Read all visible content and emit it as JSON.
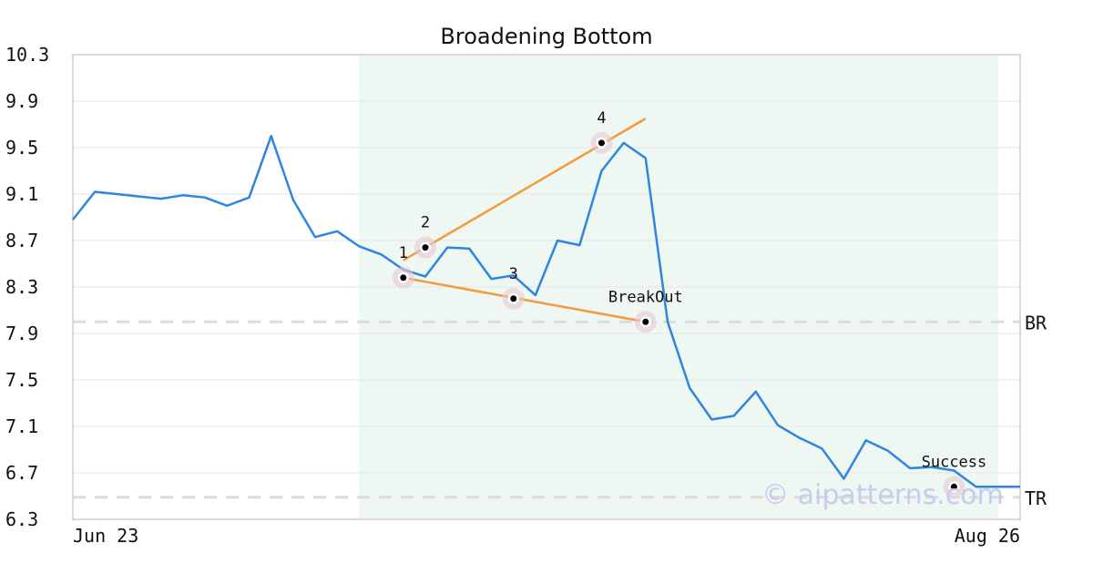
{
  "chart_data": {
    "type": "line",
    "title": "Broadening Bottom",
    "xlabel": "",
    "ylabel": "",
    "ylim": [
      6.3,
      10.3
    ],
    "y_ticks": [
      "10.3",
      "9.9",
      "9.5",
      "9.1",
      "8.7",
      "8.3",
      "7.9",
      "7.5",
      "7.1",
      "6.7",
      "6.3"
    ],
    "x_tick_labels": [
      "Jun 23",
      "Aug 26"
    ],
    "grid": true,
    "highlight_range": [
      13,
      42
    ],
    "series": [
      {
        "color": "#2e86de",
        "values": [
          8.88,
          9.12,
          9.1,
          9.08,
          9.06,
          9.09,
          9.07,
          9.0,
          9.07,
          9.6,
          9.05,
          8.73,
          8.78,
          8.65,
          8.58,
          8.45,
          8.39,
          8.64,
          8.63,
          8.37,
          8.4,
          8.23,
          8.7,
          8.66,
          9.3,
          9.54,
          9.41,
          8.0,
          7.43,
          7.16,
          7.19,
          7.4,
          7.11,
          7.0,
          6.91,
          6.65,
          6.98,
          6.89,
          6.74,
          6.75,
          6.72,
          6.58,
          6.58,
          6.58
        ]
      }
    ],
    "reference_lines": [
      {
        "label": "BR",
        "value": 8.0,
        "color": "#dcdcdc"
      },
      {
        "label": "TR",
        "value": 6.49,
        "color": "#dcdcdc"
      }
    ],
    "trendlines": [
      {
        "color": "#f59a3c",
        "from": [
          15.0,
          8.53
        ],
        "to": [
          26.0,
          9.75
        ]
      },
      {
        "color": "#f59a3c",
        "from": [
          15.0,
          8.38
        ],
        "to": [
          26.0,
          8.0
        ]
      }
    ],
    "annotations": [
      {
        "label": "1",
        "x": 15.0,
        "y": 8.38
      },
      {
        "label": "2",
        "x": 16.0,
        "y": 8.64
      },
      {
        "label": "3",
        "x": 20.0,
        "y": 8.2
      },
      {
        "label": "4",
        "x": 24.0,
        "y": 9.54
      },
      {
        "label": "BreakOut",
        "x": 26.0,
        "y": 8.0
      },
      {
        "label": "Success",
        "x": 40.0,
        "y": 6.58
      }
    ],
    "watermark": "© aipatterns.com"
  }
}
